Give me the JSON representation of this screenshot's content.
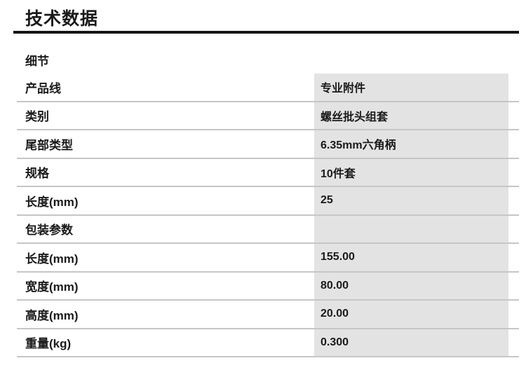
{
  "page": {
    "title": "技术数据",
    "details_header": "细节"
  },
  "table": {
    "rows": [
      {
        "label": "产品线",
        "value": "专业附件"
      },
      {
        "label": "类别",
        "value": "螺丝批头组套"
      },
      {
        "label": "尾部类型",
        "value": "6.35mm六角柄"
      },
      {
        "label": "规格",
        "value": "10件套"
      },
      {
        "label": "长度(mm)",
        "value": "25"
      },
      {
        "label": "包装参数",
        "value": ""
      },
      {
        "label": "长度(mm)",
        "value": "155.00"
      },
      {
        "label": "宽度(mm)",
        "value": "80.00"
      },
      {
        "label": "高度(mm)",
        "value": "20.00"
      },
      {
        "label": "重量(kg)",
        "value": "0.300"
      }
    ]
  },
  "colors": {
    "value_cell_bg": "#e3e3e3",
    "separator": "#c6c6c6",
    "title_rule": "#151515",
    "text": "#1a1a1a"
  }
}
